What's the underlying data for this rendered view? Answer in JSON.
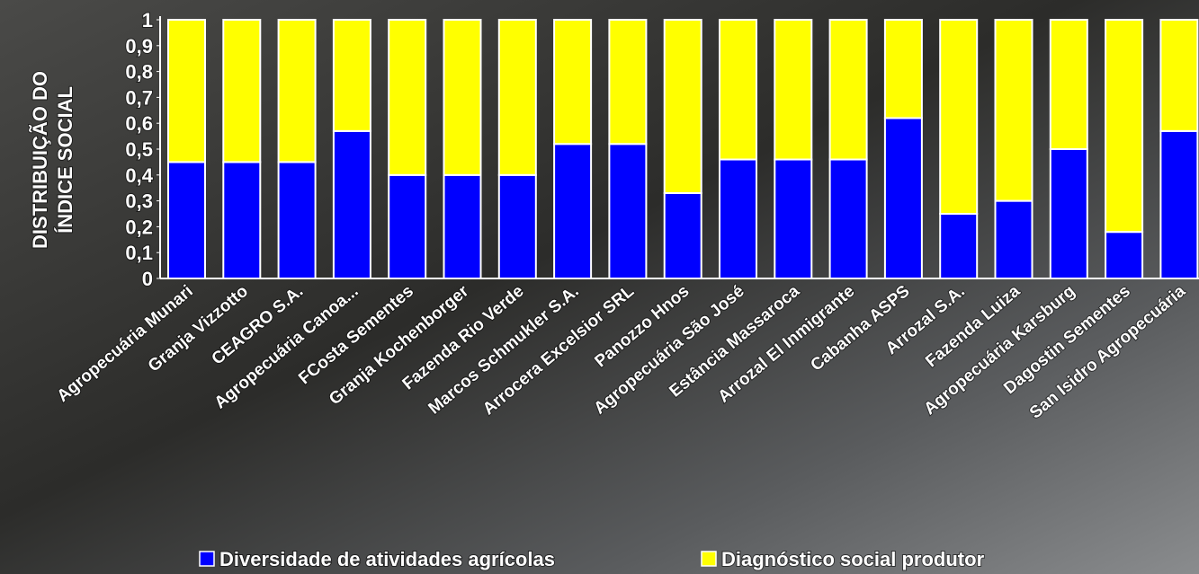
{
  "chart_data": {
    "type": "stacked_bar",
    "y_label": [
      "DISTRIBUIÇÃO DO",
      "ÍNDICE SOCIAL"
    ],
    "categories": [
      "Agropecuária Munari",
      "Granja Vizzotto",
      "CEAGRO S.A.",
      "Agropecuária Canoa...",
      "FCosta Sementes",
      "Granja Kochenborger",
      "Fazenda Rio Verde",
      "Marcos Schmukler S.A.",
      "Arrocera Excelsior SRL",
      "Panozzo Hnos",
      "Agropecuária São José",
      "Estância Massaroca",
      "Arrozal El Inmigrante",
      "Cabanha ASPS",
      "Arrozal S.A.",
      "Fazenda Luiza",
      "Agropecuária Karsburg",
      "Dagostin Sementes",
      "San Isidro Agropecuária"
    ],
    "series": [
      {
        "name": "Diversidade de atividades agrícolas",
        "color": "#0000ff",
        "values": [
          0.45,
          0.45,
          0.45,
          0.57,
          0.4,
          0.4,
          0.4,
          0.52,
          0.52,
          0.33,
          0.46,
          0.46,
          0.46,
          0.62,
          0.25,
          0.3,
          0.5,
          0.18,
          0.57
        ]
      },
      {
        "name": "Diagnóstico social produtor",
        "color": "#ffff00",
        "values": [
          0.55,
          0.55,
          0.55,
          0.43,
          0.6,
          0.6,
          0.6,
          0.48,
          0.48,
          0.67,
          0.54,
          0.54,
          0.54,
          0.38,
          0.75,
          0.7,
          0.5,
          0.82,
          0.43
        ]
      }
    ],
    "ylim": [
      0,
      1
    ],
    "yticks": [
      0,
      {
        "value": 0.1,
        "label": "0,1"
      },
      {
        "value": 0.2,
        "label": "0,2"
      },
      {
        "value": 0.3,
        "label": "0,3"
      },
      {
        "value": 0.4,
        "label": "0,4"
      },
      {
        "value": 0.5,
        "label": "0,5"
      },
      {
        "value": 0.6,
        "label": "0,6"
      },
      {
        "value": 0.7,
        "label": "0,7"
      },
      {
        "value": 0.8,
        "label": "0,8"
      },
      {
        "value": 0.9,
        "label": "0,9"
      },
      1
    ],
    "grid": false,
    "legend": "bottom"
  }
}
